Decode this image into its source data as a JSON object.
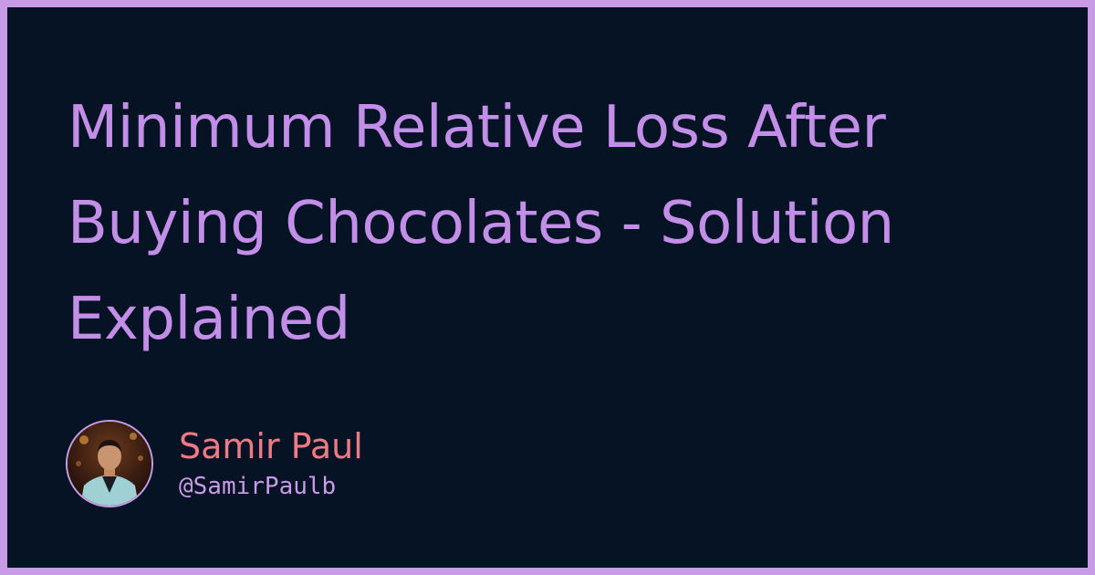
{
  "post": {
    "title": "Minimum Relative Loss After Buying Chocolates - Solution Explained"
  },
  "author": {
    "name": "Samir Paul",
    "handle": "@SamirPaulb"
  },
  "colors": {
    "border": "#c79be6",
    "background": "#061325",
    "title": "#c38ee8",
    "author_name": "#ef7a84",
    "author_handle": "#c79be6"
  }
}
